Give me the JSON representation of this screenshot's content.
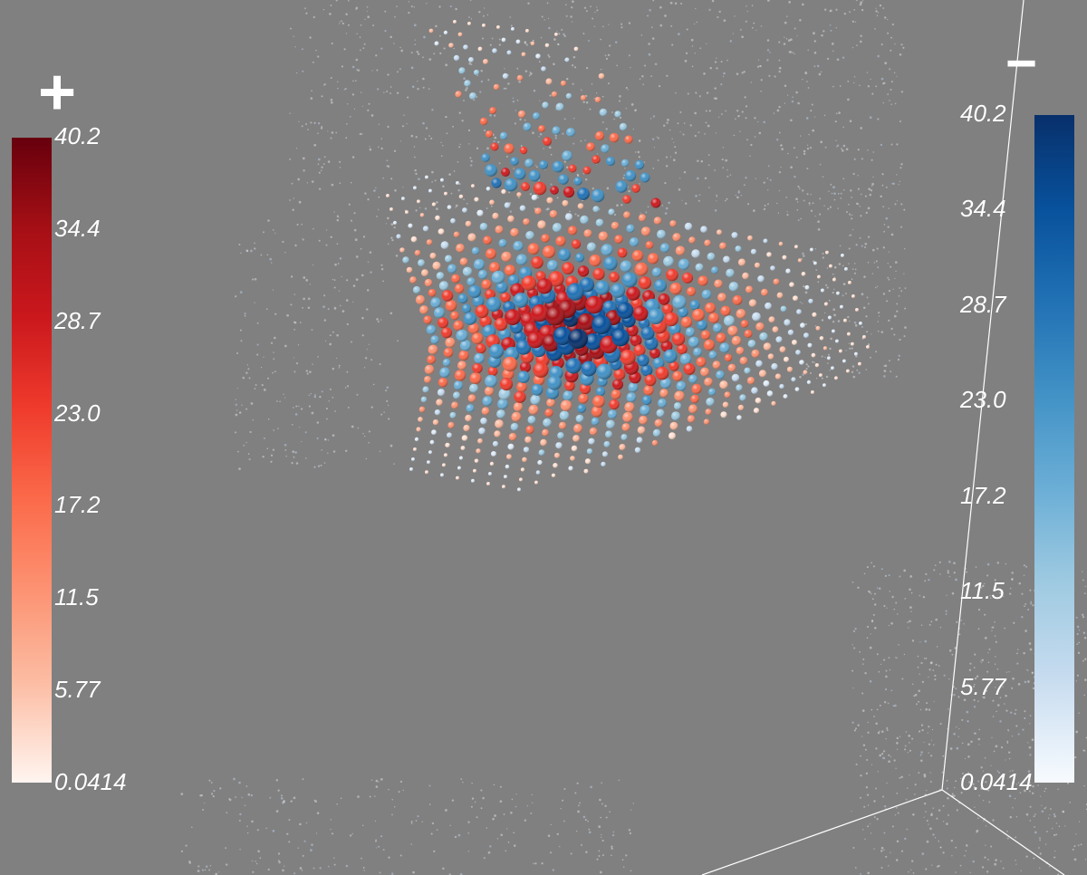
{
  "colorbar_positive": {
    "sign": "+",
    "colormap": "Reds",
    "color_top": "#67000d",
    "color_bottom": "#fff5f0",
    "ticks": [
      "40.2",
      "34.4",
      "28.7",
      "23.0",
      "17.2",
      "11.5",
      "5.77",
      "0.0414"
    ]
  },
  "colorbar_negative": {
    "sign": "−",
    "colormap": "Blues",
    "color_top": "#08306b",
    "color_bottom": "#f7fbff",
    "ticks": [
      "40.2",
      "34.4",
      "28.7",
      "23.0",
      "17.2",
      "11.5",
      "5.77",
      "0.0414"
    ]
  },
  "background_color": "#808080",
  "visualization": {
    "type": "3d-sphere-glyph-field",
    "value_range": [
      0.0414,
      40.2
    ],
    "positive_colormap": "Reds",
    "negative_colormap": "Blues"
  }
}
